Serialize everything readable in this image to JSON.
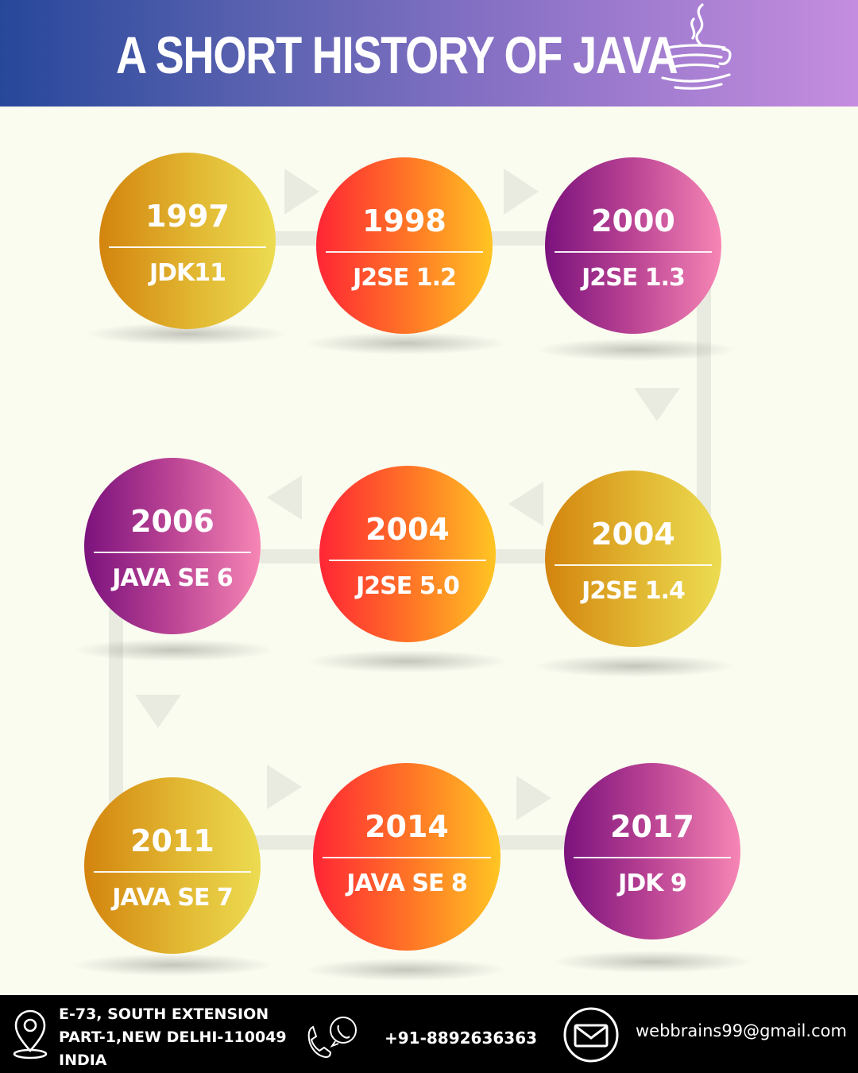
{
  "title": "A SHORT HISTORY OF JAVA",
  "colors": {
    "header_start": "#27479a",
    "header_end": "#c58ddf",
    "background": "#fbfcf0",
    "footer": "#000000",
    "connector": "#e9ebe0"
  },
  "timeline": [
    {
      "year": "1997",
      "label": "JDK11",
      "style": "gold"
    },
    {
      "year": "1998",
      "label": "J2SE 1.2",
      "style": "red"
    },
    {
      "year": "2000",
      "label": "J2SE 1.3",
      "style": "purple"
    },
    {
      "year": "2004",
      "label": "J2SE 1.4",
      "style": "gold"
    },
    {
      "year": "2004",
      "label": "J2SE 5.0",
      "style": "red"
    },
    {
      "year": "2006",
      "label": "JAVA SE 6",
      "style": "purple"
    },
    {
      "year": "2011",
      "label": "JAVA SE 7",
      "style": "gold"
    },
    {
      "year": "2014",
      "label": "JAVA SE 8",
      "style": "red"
    },
    {
      "year": "2017",
      "label": "JDK 9",
      "style": "purple"
    }
  ],
  "footer": {
    "address_line1": "E-73, SOUTH EXTENSION",
    "address_line2": "PART-1,NEW DELHI-110049",
    "address_line3": "INDIA",
    "phone": "+91-8892636363",
    "email": "webbrains99@gmail.com",
    "icons": [
      "location-pin-icon",
      "phone-chat-icon",
      "mail-icon"
    ]
  }
}
